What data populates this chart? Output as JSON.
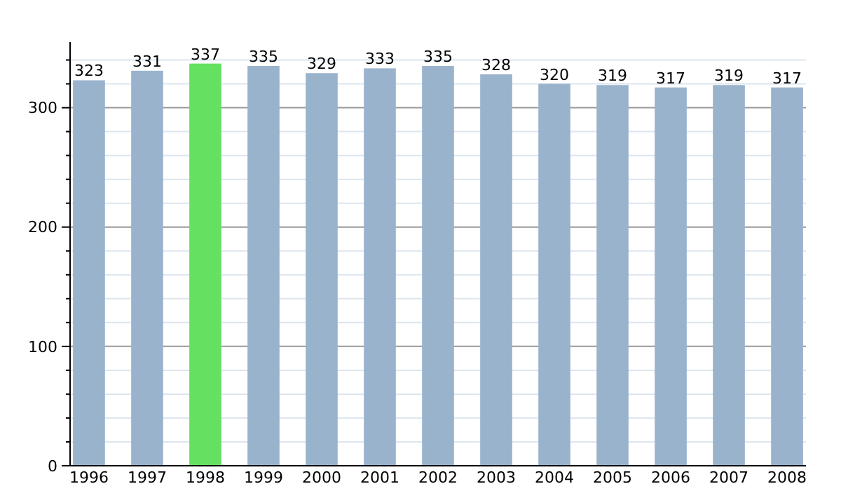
{
  "chart_data": {
    "type": "bar",
    "categories": [
      "1996",
      "1997",
      "1998",
      "1999",
      "2000",
      "2001",
      "2002",
      "2003",
      "2004",
      "2005",
      "2006",
      "2007",
      "2008"
    ],
    "values": [
      323,
      331,
      337,
      335,
      329,
      333,
      335,
      328,
      320,
      319,
      317,
      319,
      317
    ],
    "colors": [
      "#9ab3cd",
      "#9ab3cd",
      "#66e060",
      "#9ab3cd",
      "#9ab3cd",
      "#9ab3cd",
      "#9ab3cd",
      "#9ab3cd",
      "#9ab3cd",
      "#9ab3cd",
      "#9ab3cd",
      "#9ab3cd",
      "#9ab3cd"
    ],
    "ylim": [
      0,
      355
    ],
    "yticks": [
      0,
      {
        "value": 20,
        "label": null
      },
      {
        "value": 40,
        "label": null
      },
      {
        "value": 60,
        "label": null
      },
      {
        "value": 80,
        "label": null
      },
      100,
      {
        "value": 120,
        "label": null
      },
      {
        "value": 140,
        "label": null
      },
      {
        "value": 160,
        "label": null
      },
      {
        "value": 180,
        "label": null
      },
      200,
      {
        "value": 220,
        "label": null
      },
      {
        "value": 240,
        "label": null
      },
      {
        "value": 260,
        "label": null
      },
      {
        "value": 280,
        "label": null
      },
      300,
      {
        "value": 320,
        "label": null
      },
      {
        "value": 340,
        "label": null
      }
    ],
    "grid": "y",
    "data_labels": true
  }
}
